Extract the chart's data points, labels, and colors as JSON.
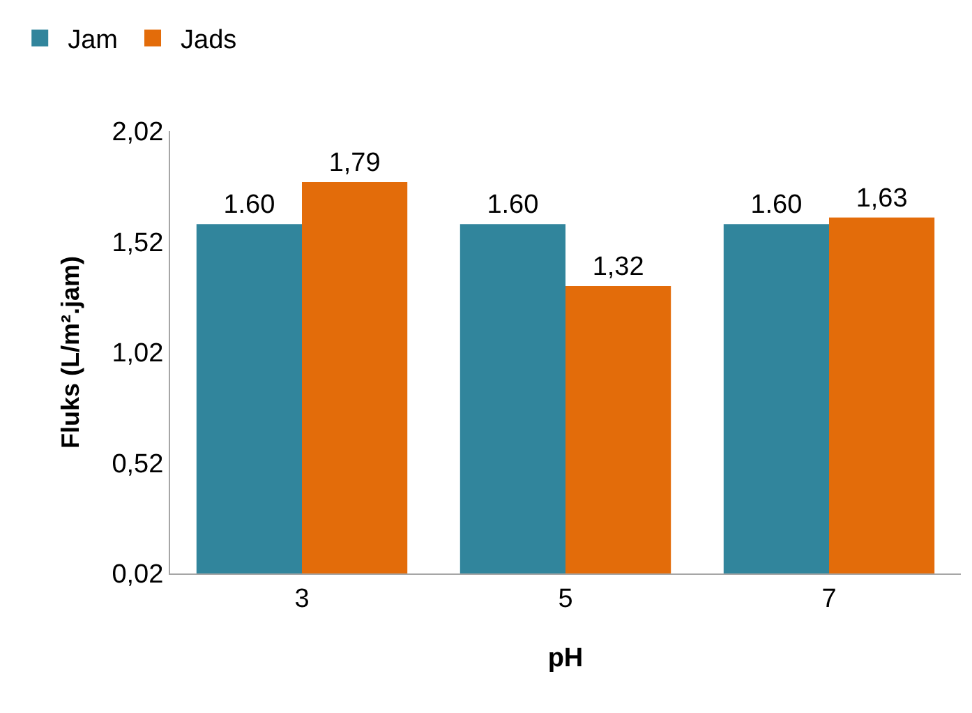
{
  "chart_data": {
    "type": "bar",
    "xlabel": "pH",
    "ylabel": "Fluks (L/m².jam)",
    "categories": [
      "3",
      "5",
      "7"
    ],
    "series": [
      {
        "name": "Jam",
        "color": "#31859c",
        "values": [
          1.6,
          1.6,
          1.6
        ],
        "value_labels": [
          "1.60",
          "1.60",
          "1.60"
        ]
      },
      {
        "name": "Jads",
        "color": "#e36c0a",
        "values": [
          1.79,
          1.32,
          1.63
        ],
        "value_labels": [
          "1,79",
          "1,32",
          "1,63"
        ]
      }
    ],
    "ylim": [
      0.02,
      2.02
    ],
    "yticks": [
      {
        "value": 0.02,
        "label": "0,02"
      },
      {
        "value": 0.52,
        "label": "0,52"
      },
      {
        "value": 1.02,
        "label": "1,02"
      },
      {
        "value": 1.52,
        "label": "1,52"
      },
      {
        "value": 2.02,
        "label": "2,02"
      }
    ],
    "grid": false,
    "legend": "top left"
  }
}
